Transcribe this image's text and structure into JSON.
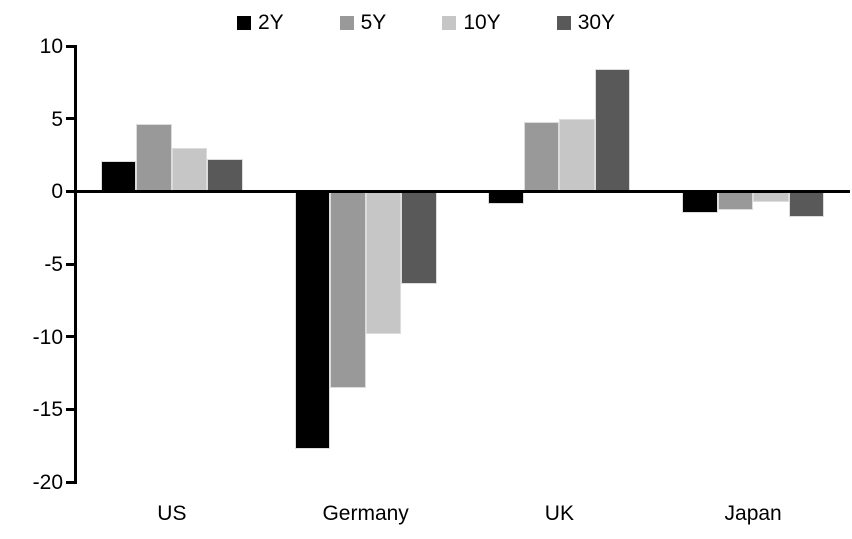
{
  "chart_data": {
    "type": "bar",
    "title": "",
    "categories": [
      "US",
      "Germany",
      "UK",
      "Japan"
    ],
    "series": [
      {
        "name": "2Y",
        "color": "#000000",
        "values": [
          2.1,
          -17.7,
          -0.9,
          -1.5
        ]
      },
      {
        "name": "5Y",
        "color": "#999999",
        "values": [
          4.6,
          -13.5,
          4.8,
          -1.3
        ]
      },
      {
        "name": "10Y",
        "color": "#c6c6c6",
        "values": [
          3.0,
          -9.8,
          5.0,
          -0.7
        ]
      },
      {
        "name": "30Y",
        "color": "#595959",
        "values": [
          2.2,
          -6.4,
          8.4,
          -1.8
        ]
      }
    ],
    "ylim": [
      -20,
      10
    ],
    "yticks": [
      10,
      5,
      0,
      -5,
      -10,
      -15,
      -20
    ],
    "grid": false,
    "legend_position": "top",
    "axis_color": "#000000",
    "background_color": "#ffffff"
  }
}
